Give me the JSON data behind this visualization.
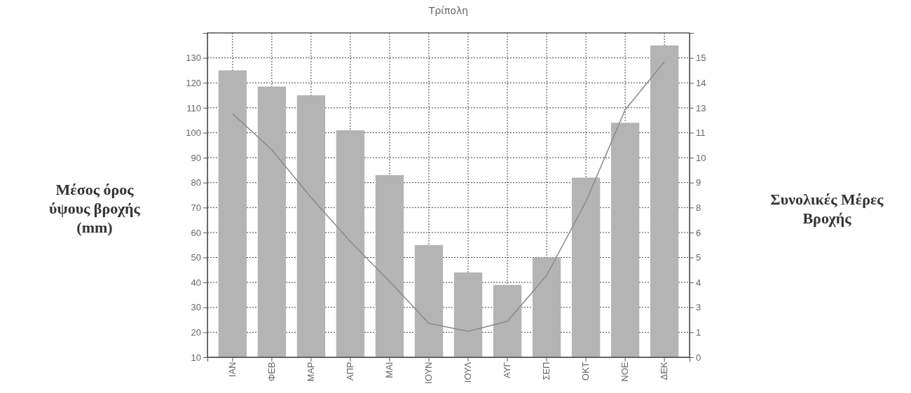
{
  "chart_data": {
    "type": "bar",
    "title": "Τρίπολη",
    "ylabel": "Μέσος όρος ύψους βροχής (mm)",
    "y2label": "Συνολικές Μέρες Βροχής",
    "categories": [
      "ΙΑΝ",
      "ΦΕΒ",
      "ΜΑΡ",
      "ΑΠΡ",
      "ΜΑΙ",
      "ΙΟΥΝ",
      "ΙΟΥΛ",
      "ΑΥΓ",
      "ΣΕΠ",
      "ΟΚΤ",
      "ΝΟΕ",
      "ΔΕΚ"
    ],
    "series": [
      {
        "color": "#b4b4b4",
        "values": [
          125,
          118.5,
          115,
          101,
          83,
          55,
          44,
          39,
          50,
          82,
          104,
          135
        ]
      },
      {
        "type": "line",
        "axis": "y2",
        "color": "#8a8a8a",
        "values": [
          12.2,
          10.4,
          8.0,
          5.8,
          3.8,
          1.7,
          1.3,
          1.8,
          4.1,
          7.8,
          12.4,
          14.8
        ]
      }
    ],
    "ylim": [
      10,
      140
    ],
    "yticks": [
      10,
      20,
      30,
      40,
      50,
      60,
      70,
      80,
      90,
      100,
      110,
      120,
      130
    ],
    "y2lim": [
      0,
      16.25
    ],
    "y2ticks": [
      0,
      {
        "value": 1.25,
        "label": "1"
      },
      {
        "value": 2.5,
        "label": "3"
      },
      {
        "value": 3.75,
        "label": "4"
      },
      5,
      {
        "value": 6.25,
        "label": "6"
      },
      {
        "value": 7.5,
        "label": "8"
      },
      {
        "value": 8.75,
        "label": "9"
      },
      10,
      {
        "value": 11.25,
        "label": "11"
      },
      {
        "value": 12.5,
        "label": "13"
      },
      {
        "value": 13.75,
        "label": "14"
      },
      15
    ],
    "grid": true,
    "marker": "none",
    "line_style": "solid"
  }
}
